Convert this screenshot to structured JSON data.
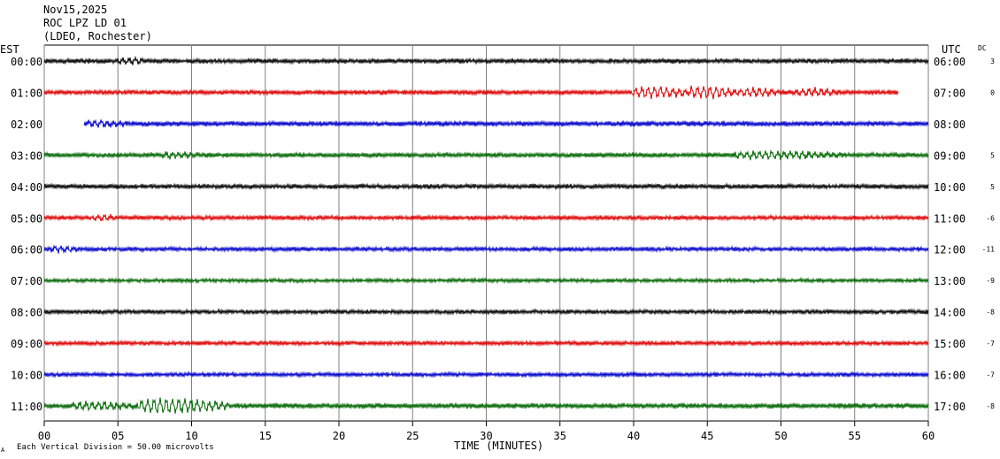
{
  "header": {
    "date": "Nov15,2025",
    "station": "ROC LPZ LD 01",
    "network": "(LDEO, Rochester)"
  },
  "chart_data": {
    "type": "line",
    "title": "",
    "left_axis_label": "EST",
    "right_axis_label": "UTC",
    "dc_label": "DC",
    "xlabel": "TIME (MINUTES)",
    "xlim": [
      0,
      60
    ],
    "x_ticks": [
      "00",
      "05",
      "10",
      "15",
      "20",
      "25",
      "30",
      "35",
      "40",
      "45",
      "50",
      "55",
      "60"
    ],
    "footer_prefix": "A",
    "scale_note": "Each Vertical Division =",
    "scale_value": "50.00 microvolts",
    "grid": true,
    "color_cycle": [
      "#000000",
      "#dd0000",
      "#0000cc",
      "#006600"
    ],
    "rows": [
      {
        "est": "00:00",
        "utc": "06:00",
        "dc": "3",
        "start_min": 0,
        "end_min": 60,
        "noise": 1.0,
        "events": [
          {
            "min": 5.5,
            "dur": 1.0,
            "amp": 1.8
          }
        ]
      },
      {
        "est": "01:00",
        "utc": "07:00",
        "dc": "0",
        "start_min": 0,
        "end_min": 58,
        "noise": 1.0,
        "events": [
          {
            "min": 40.5,
            "dur": 3.0,
            "amp": 3.0
          },
          {
            "min": 44.5,
            "dur": 2.0,
            "amp": 3.5
          },
          {
            "min": 47.8,
            "dur": 1.5,
            "amp": 2.4
          },
          {
            "min": 51.5,
            "dur": 2.0,
            "amp": 2.0
          }
        ]
      },
      {
        "est": "02:00",
        "utc": "08:00",
        "dc": "",
        "start_min": 2.7,
        "end_min": 60,
        "noise": 1.1,
        "events": [
          {
            "min": 3.5,
            "dur": 1.5,
            "amp": 1.8
          }
        ]
      },
      {
        "est": "03:00",
        "utc": "09:00",
        "dc": "5",
        "start_min": 0,
        "end_min": 60,
        "noise": 1.0,
        "events": [
          {
            "min": 8.5,
            "dur": 1.5,
            "amp": 1.6
          },
          {
            "min": 47.5,
            "dur": 6.0,
            "amp": 2.0
          }
        ]
      },
      {
        "est": "04:00",
        "utc": "10:00",
        "dc": "5",
        "start_min": 0,
        "end_min": 60,
        "noise": 1.0,
        "events": []
      },
      {
        "est": "05:00",
        "utc": "11:00",
        "dc": "-6",
        "start_min": 0,
        "end_min": 60,
        "noise": 0.9,
        "events": [
          {
            "min": 3.8,
            "dur": 0.5,
            "amp": 1.6
          }
        ]
      },
      {
        "est": "06:00",
        "utc": "12:00",
        "dc": "-11",
        "start_min": 0,
        "end_min": 60,
        "noise": 0.9,
        "events": [
          {
            "min": 1.0,
            "dur": 1.0,
            "amp": 1.5
          }
        ]
      },
      {
        "est": "07:00",
        "utc": "13:00",
        "dc": "-9",
        "start_min": 0,
        "end_min": 60,
        "noise": 0.8,
        "events": []
      },
      {
        "est": "08:00",
        "utc": "14:00",
        "dc": "-8",
        "start_min": 0,
        "end_min": 60,
        "noise": 0.9,
        "events": []
      },
      {
        "est": "09:00",
        "utc": "15:00",
        "dc": "-7",
        "start_min": 0,
        "end_min": 60,
        "noise": 0.9,
        "events": []
      },
      {
        "est": "10:00",
        "utc": "16:00",
        "dc": "-7",
        "start_min": 0,
        "end_min": 60,
        "noise": 0.9,
        "events": []
      },
      {
        "est": "11:00",
        "utc": "17:00",
        "dc": "-8",
        "start_min": 0,
        "end_min": 60,
        "noise": 1.1,
        "events": [
          {
            "min": 2.5,
            "dur": 3.0,
            "amp": 2.2
          },
          {
            "min": 7.0,
            "dur": 5.0,
            "amp": 4.2
          }
        ]
      }
    ]
  }
}
